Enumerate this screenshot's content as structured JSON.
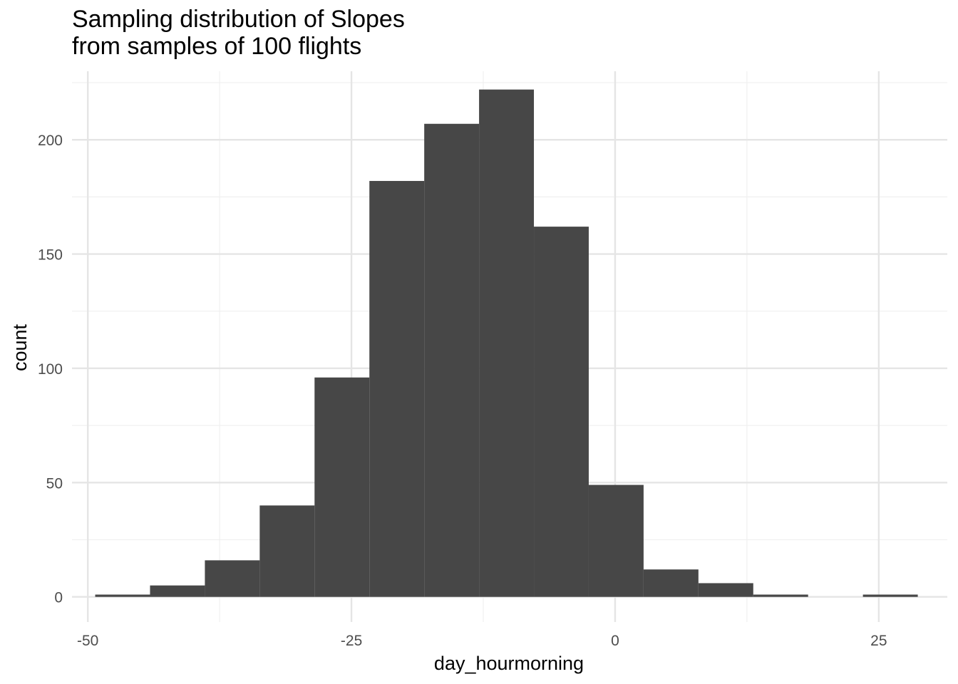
{
  "chart_data": {
    "type": "bar",
    "title": [
      "Sampling distribution of Slopes",
      "from samples of 100 flights"
    ],
    "xlabel": "day_hourmorning",
    "ylabel": "count",
    "xlim": [
      -51.5,
      31.5
    ],
    "ylim": [
      -11,
      230
    ],
    "xticks": [
      -50,
      -25,
      0,
      25
    ],
    "xtick_labels": [
      "-50",
      "-25",
      "0",
      "25"
    ],
    "yticks": [
      0,
      50,
      100,
      150,
      200
    ],
    "ytick_labels": [
      "0",
      "50",
      "100",
      "150",
      "200"
    ],
    "x_minor_gridlines": [
      -37.5,
      -12.5,
      12.5
    ],
    "y_minor_gridlines": [
      25,
      75,
      125,
      175,
      225
    ],
    "bin_width": 5.2,
    "bins": [
      {
        "x_start": -49.3,
        "x_end": -44.1,
        "count": 1
      },
      {
        "x_start": -44.1,
        "x_end": -38.9,
        "count": 5
      },
      {
        "x_start": -38.9,
        "x_end": -33.7,
        "count": 16
      },
      {
        "x_start": -33.7,
        "x_end": -28.5,
        "count": 40
      },
      {
        "x_start": -28.5,
        "x_end": -23.3,
        "count": 96
      },
      {
        "x_start": -23.3,
        "x_end": -18.1,
        "count": 182
      },
      {
        "x_start": -18.1,
        "x_end": -12.9,
        "count": 207
      },
      {
        "x_start": -12.9,
        "x_end": -7.7,
        "count": 222
      },
      {
        "x_start": -7.7,
        "x_end": -2.5,
        "count": 162
      },
      {
        "x_start": -2.5,
        "x_end": 2.7,
        "count": 49
      },
      {
        "x_start": 2.7,
        "x_end": 7.9,
        "count": 12
      },
      {
        "x_start": 7.9,
        "x_end": 13.1,
        "count": 6
      },
      {
        "x_start": 13.1,
        "x_end": 18.3,
        "count": 1
      },
      {
        "x_start": 18.3,
        "x_end": 23.5,
        "count": 0
      },
      {
        "x_start": 23.5,
        "x_end": 28.7,
        "count": 1
      }
    ],
    "colors": {
      "bar_fill": "#474747",
      "grid_major": "#e5e5e5",
      "grid_minor": "#f0f0f0",
      "tick_text": "#4d4d4d",
      "label_text": "#000000"
    },
    "grid": true,
    "legend": "none"
  }
}
